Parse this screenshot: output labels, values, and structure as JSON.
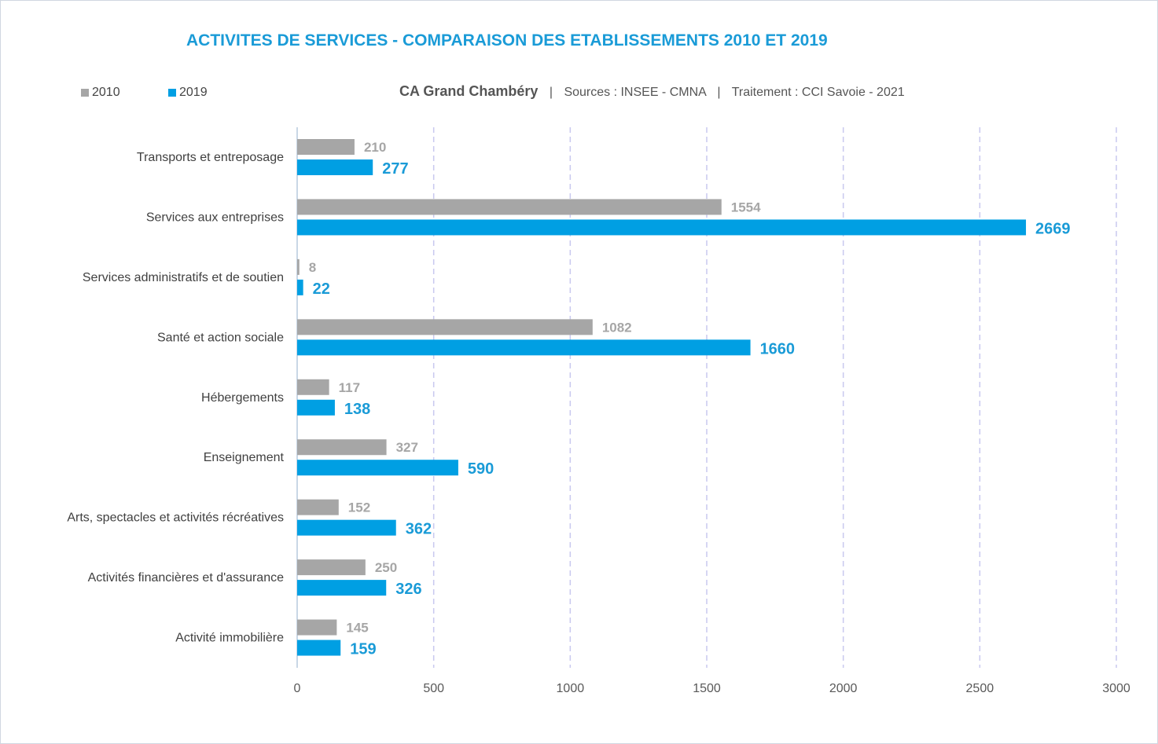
{
  "title": "ACTIVITES DE SERVICES - COMPARAISON DES ETABLISSEMENTS 2010 ET 2019",
  "subtitle": {
    "location": "CA Grand Chambéry",
    "separator": "|",
    "sources": "Sources : INSEE - CMNA",
    "treatment": "Traitement : CCI Savoie - 2021"
  },
  "colors": {
    "s2010": "#a6a6a6",
    "s2019": "#009fe3",
    "grid": "#c9c9ef",
    "axis": "#c9d7e6"
  },
  "chart_data": {
    "type": "bar",
    "orientation": "horizontal",
    "title": "ACTIVITES DE SERVICES - COMPARAISON DES ETABLISSEMENTS 2010 ET 2019",
    "categories": [
      "Transports et entreposage",
      "Services aux entreprises",
      "Services administratifs et de soutien",
      "Santé et action sociale",
      "Hébergements",
      "Enseignement",
      "Arts, spectacles et activités récréatives",
      "Activités financières et d'assurance",
      "Activité immobilière"
    ],
    "series": [
      {
        "name": "2010",
        "values": [
          210,
          1554,
          8,
          1082,
          117,
          327,
          152,
          250,
          145
        ]
      },
      {
        "name": "2019",
        "values": [
          277,
          2669,
          22,
          1660,
          138,
          590,
          362,
          326,
          159
        ]
      }
    ],
    "xlim": [
      0,
      3000
    ],
    "xticks": [
      "0",
      "500",
      "1000",
      "1500",
      "2000",
      "2500",
      "3000"
    ],
    "xtick_values": [
      0,
      500,
      1000,
      1500,
      2000,
      2500,
      3000
    ],
    "grid": true,
    "legend_position": "top-left"
  }
}
